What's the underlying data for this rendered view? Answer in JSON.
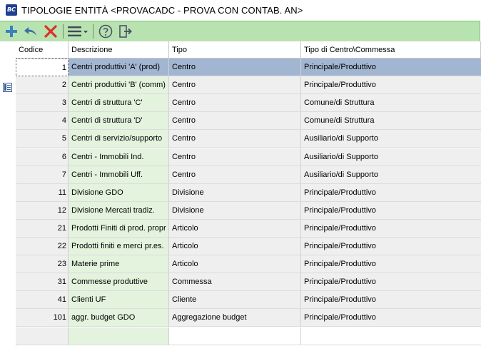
{
  "window": {
    "app_icon_text": "BC",
    "title": "TIPOLOGIE ENTITÀ <PROVACADC - PROVA CON CONTAB. AN>"
  },
  "toolbar": {
    "buttons": [
      {
        "name": "add",
        "icon": "plus-icon",
        "color": "#3a7fc0"
      },
      {
        "name": "undo",
        "icon": "undo-arrow-icon",
        "color": "#3a6fa8"
      },
      {
        "name": "delete",
        "icon": "close-x-icon",
        "color": "#d9302b"
      },
      {
        "name": "menu",
        "icon": "hamburger-menu-icon"
      },
      {
        "name": "help",
        "icon": "question-icon"
      },
      {
        "name": "exit",
        "icon": "exit-door-icon"
      }
    ]
  },
  "grid": {
    "columns": [
      "Codice",
      "Descrizione",
      "Tipo",
      "Tipo di Centro\\Commessa"
    ],
    "rows": [
      {
        "codice": "1",
        "descrizione": "Centri produttivi 'A' (prod)",
        "tipo": "Centro",
        "tipo_cc": "Principale/Produttivo",
        "selected": true
      },
      {
        "codice": "2",
        "descrizione": "Centri produttivi 'B' (comm)",
        "tipo": "Centro",
        "tipo_cc": "Principale/Produttivo"
      },
      {
        "codice": "3",
        "descrizione": "Centri di struttura 'C'",
        "tipo": "Centro",
        "tipo_cc": "Comune/di Struttura"
      },
      {
        "codice": "4",
        "descrizione": "Centri di struttura 'D'",
        "tipo": "Centro",
        "tipo_cc": "Comune/di Struttura"
      },
      {
        "codice": "5",
        "descrizione": "Centri di servizio/supporto",
        "tipo": "Centro",
        "tipo_cc": "Ausiliario/di Supporto"
      },
      {
        "codice": "6",
        "descrizione": "Centri - Immobili Ind.",
        "tipo": "Centro",
        "tipo_cc": "Ausiliario/di Supporto"
      },
      {
        "codice": "7",
        "descrizione": "Centri - Immobili Uff.",
        "tipo": "Centro",
        "tipo_cc": "Ausiliario/di Supporto"
      },
      {
        "codice": "11",
        "descrizione": "Divisione GDO",
        "tipo": "Divisione",
        "tipo_cc": "Principale/Produttivo"
      },
      {
        "codice": "12",
        "descrizione": "Divisione Mercati tradiz.",
        "tipo": "Divisione",
        "tipo_cc": "Principale/Produttivo"
      },
      {
        "codice": "21",
        "descrizione": "Prodotti Finiti di prod. propr",
        "tipo": "Articolo",
        "tipo_cc": "Principale/Produttivo"
      },
      {
        "codice": "22",
        "descrizione": "Prodotti finiti e merci pr.es.",
        "tipo": "Articolo",
        "tipo_cc": "Principale/Produttivo"
      },
      {
        "codice": "23",
        "descrizione": "Materie prime",
        "tipo": "Articolo",
        "tipo_cc": "Principale/Produttivo"
      },
      {
        "codice": "31",
        "descrizione": "Commesse produttive",
        "tipo": "Commessa",
        "tipo_cc": "Principale/Produttivo"
      },
      {
        "codice": "41",
        "descrizione": "Clienti UF",
        "tipo": "Cliente",
        "tipo_cc": "Principale/Produttivo"
      },
      {
        "codice": "101",
        "descrizione": "aggr. budget GDO",
        "tipo": "Aggregazione budget",
        "tipo_cc": "Principale/Produttivo"
      }
    ]
  }
}
